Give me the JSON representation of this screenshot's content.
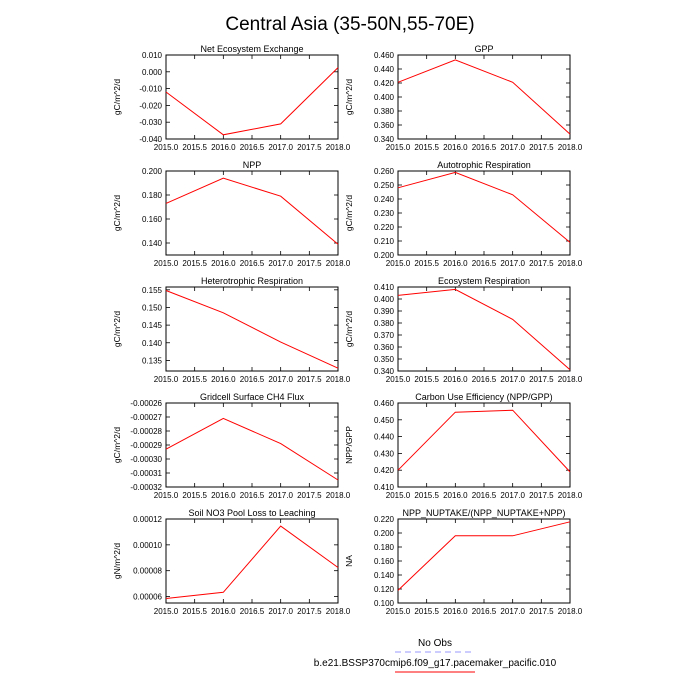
{
  "figure_title": "Central Asia (35-50N,55-70E)",
  "legend": {
    "obs_label": "No Obs",
    "obs_color": "#9999ff",
    "model_label": "b.e21.BSSP370cmip6.f09_g17.pacemaker_pacific.010",
    "model_color": "#ff0000"
  },
  "chart_data": [
    {
      "type": "line",
      "title": "Net Ecosystem Exchange",
      "ylabel": "gC/m^2/d",
      "x": [
        2015,
        2016,
        2017,
        2018
      ],
      "values": [
        -0.012,
        -0.0375,
        -0.031,
        0.0025
      ],
      "xlim": [
        2015,
        2018
      ],
      "ylim": [
        -0.04,
        0.01
      ],
      "xticks": [
        "2015.0",
        "2015.5",
        "2016.0",
        "2016.5",
        "2017.0",
        "2017.5",
        "2018.0"
      ],
      "yticks": [
        "0.010",
        "0.000",
        "-0.010",
        "-0.020",
        "-0.030",
        "-0.040"
      ],
      "yticks_values": [
        0.01,
        0.0,
        -0.01,
        -0.02,
        -0.03,
        -0.04
      ],
      "color": "#ff0000"
    },
    {
      "type": "line",
      "title": "GPP",
      "ylabel": "gC/m^2/d",
      "x": [
        2015,
        2016,
        2017,
        2018
      ],
      "values": [
        0.421,
        0.453,
        0.421,
        0.347
      ],
      "xlim": [
        2015,
        2018
      ],
      "ylim": [
        0.34,
        0.46
      ],
      "xticks": [
        "2015.0",
        "2015.5",
        "2016.0",
        "2016.5",
        "2017.0",
        "2017.5",
        "2018.0"
      ],
      "yticks": [
        "0.460",
        "0.440",
        "0.420",
        "0.400",
        "0.380",
        "0.360",
        "0.340"
      ],
      "yticks_values": [
        0.46,
        0.44,
        0.42,
        0.4,
        0.38,
        0.36,
        0.34
      ],
      "color": "#ff0000"
    },
    {
      "type": "line",
      "title": "NPP",
      "ylabel": "gC/m^2/d",
      "x": [
        2015,
        2016,
        2017,
        2018
      ],
      "values": [
        0.173,
        0.194,
        0.179,
        0.139
      ],
      "xlim": [
        2015,
        2018
      ],
      "ylim": [
        0.13,
        0.2
      ],
      "xticks": [
        "2015.0",
        "2015.5",
        "2016.0",
        "2016.5",
        "2017.0",
        "2017.5",
        "2018.0"
      ],
      "yticks": [
        "0.200",
        "0.180",
        "0.160",
        "0.140"
      ],
      "yticks_values": [
        0.2,
        0.18,
        0.16,
        0.14
      ],
      "color": "#ff0000"
    },
    {
      "type": "line",
      "title": "Autotrophic Respiration",
      "ylabel": "gC/m^2/d",
      "x": [
        2015,
        2016,
        2017,
        2018
      ],
      "values": [
        0.248,
        0.259,
        0.243,
        0.209
      ],
      "xlim": [
        2015,
        2018
      ],
      "ylim": [
        0.2,
        0.26
      ],
      "xticks": [
        "2015.0",
        "2015.5",
        "2016.0",
        "2016.5",
        "2017.0",
        "2017.5",
        "2018.0"
      ],
      "yticks": [
        "0.260",
        "0.250",
        "0.240",
        "0.230",
        "0.220",
        "0.210",
        "0.200"
      ],
      "yticks_values": [
        0.26,
        0.25,
        0.24,
        0.23,
        0.22,
        0.21,
        0.2
      ],
      "color": "#ff0000"
    },
    {
      "type": "line",
      "title": "Heterotrophic Respiration",
      "ylabel": "gC/m^2/d",
      "x": [
        2015,
        2016,
        2017,
        2018
      ],
      "values": [
        0.1548,
        0.1485,
        0.1402,
        0.1328
      ],
      "xlim": [
        2015,
        2018
      ],
      "ylim": [
        0.132,
        0.1558
      ],
      "xticks": [
        "2015.0",
        "2015.5",
        "2016.0",
        "2016.5",
        "2017.0",
        "2017.5",
        "2018.0"
      ],
      "yticks": [
        "0.155",
        "0.150",
        "0.145",
        "0.140",
        "0.135"
      ],
      "yticks_values": [
        0.155,
        0.15,
        0.145,
        0.14,
        0.135
      ],
      "color": "#ff0000"
    },
    {
      "type": "line",
      "title": "Ecosystem Respiration",
      "ylabel": "gC/m^2/d",
      "x": [
        2015,
        2016,
        2017,
        2018
      ],
      "values": [
        0.403,
        0.408,
        0.383,
        0.341
      ],
      "xlim": [
        2015,
        2018
      ],
      "ylim": [
        0.34,
        0.41
      ],
      "xticks": [
        "2015.0",
        "2015.5",
        "2016.0",
        "2016.5",
        "2017.0",
        "2017.5",
        "2018.0"
      ],
      "yticks": [
        "0.410",
        "0.400",
        "0.390",
        "0.380",
        "0.370",
        "0.360",
        "0.350",
        "0.340"
      ],
      "yticks_values": [
        0.41,
        0.4,
        0.39,
        0.38,
        0.37,
        0.36,
        0.35,
        0.34
      ],
      "color": "#ff0000"
    },
    {
      "type": "line",
      "title": "Gridcell Surface CH4 Flux",
      "ylabel": "gC/m^2/d",
      "x": [
        2015,
        2016,
        2017,
        2018
      ],
      "values": [
        -0.000293,
        -0.000271,
        -0.000289,
        -0.000315
      ],
      "xlim": [
        2015,
        2018
      ],
      "ylim": [
        -0.00032,
        -0.00026
      ],
      "xticks": [
        "2015.0",
        "2015.5",
        "2016.0",
        "2016.5",
        "2017.0",
        "2017.5",
        "2018.0"
      ],
      "yticks": [
        "-0.00026",
        "-0.00027",
        "-0.00028",
        "-0.00029",
        "-0.00030",
        "-0.00031",
        "-0.00032"
      ],
      "yticks_values": [
        -0.00026,
        -0.00027,
        -0.00028,
        -0.00029,
        -0.0003,
        -0.00031,
        -0.00032
      ],
      "color": "#ff0000"
    },
    {
      "type": "line",
      "title": "Carbon Use Efficiency (NPP/GPP)",
      "ylabel": "NPP/GPP",
      "x": [
        2015,
        2016,
        2017,
        2018
      ],
      "values": [
        0.42,
        0.4545,
        0.4557,
        0.419
      ],
      "xlim": [
        2015,
        2018
      ],
      "ylim": [
        0.41,
        0.46
      ],
      "xticks": [
        "2015.0",
        "2015.5",
        "2016.0",
        "2016.5",
        "2017.0",
        "2017.5",
        "2018.0"
      ],
      "yticks": [
        "0.460",
        "0.450",
        "0.440",
        "0.430",
        "0.420",
        "0.410"
      ],
      "yticks_values": [
        0.46,
        0.45,
        0.44,
        0.43,
        0.42,
        0.41
      ],
      "color": "#ff0000"
    },
    {
      "type": "line",
      "title": "Soil NO3 Pool Loss to Leaching",
      "ylabel": "gN/m^2/d",
      "x": [
        2015,
        2016,
        2017,
        2018
      ],
      "values": [
        5.85e-05,
        6.33e-05,
        0.0001145,
        8.25e-05
      ],
      "xlim": [
        2015,
        2018
      ],
      "ylim": [
        5.5e-05,
        0.00012
      ],
      "xticks": [
        "2015.0",
        "2015.5",
        "2016.0",
        "2016.5",
        "2017.0",
        "2017.5",
        "2018.0"
      ],
      "yticks": [
        "0.00012",
        "0.00010",
        "0.00008",
        "0.00006"
      ],
      "yticks_values": [
        0.00012,
        0.0001,
        8e-05,
        6e-05
      ],
      "color": "#ff0000"
    },
    {
      "type": "line",
      "title": "NPP_NUPTAKE/(NPP_NUPTAKE+NPP)",
      "ylabel": "NA",
      "x": [
        2015,
        2016,
        2017,
        2018
      ],
      "values": [
        0.118,
        0.196,
        0.196,
        0.216
      ],
      "xlim": [
        2015,
        2018
      ],
      "ylim": [
        0.1,
        0.22
      ],
      "xticks": [
        "2015.0",
        "2015.5",
        "2016.0",
        "2016.5",
        "2017.0",
        "2017.5",
        "2018.0"
      ],
      "yticks": [
        "0.220",
        "0.200",
        "0.180",
        "0.160",
        "0.140",
        "0.120",
        "0.100"
      ],
      "yticks_values": [
        0.22,
        0.2,
        0.18,
        0.16,
        0.14,
        0.12,
        0.1
      ],
      "color": "#ff0000"
    }
  ]
}
